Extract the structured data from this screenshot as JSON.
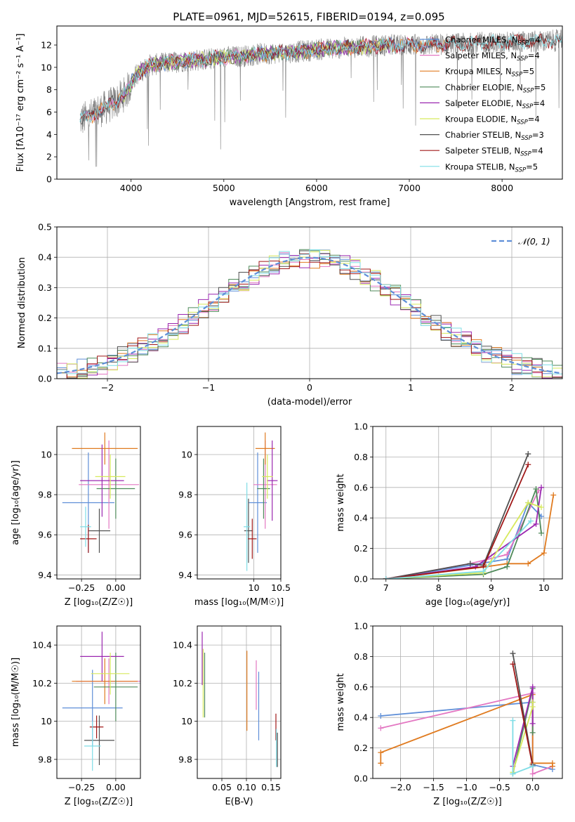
{
  "figure_title": "PLATE=0961, MJD=52615, FIBERID=0194, z=0.095",
  "colors": {
    "Chabrier MILES": "#5f8fd8",
    "Salpeter MILES": "#e377c2",
    "Kroupa MILES": "#e07b20",
    "Chabrier ELODIE": "#4f8a5a",
    "Salpeter ELODIE": "#9b27b0",
    "Kroupa ELODIE": "#d7e95c",
    "Chabrier STELIB": "#505050",
    "Salpeter STELIB": "#a01818",
    "Kroupa STELIB": "#7fdde6"
  },
  "chart_data": [
    {
      "id": "spectrum",
      "type": "line",
      "title": "PLATE=0961, MJD=52615, FIBERID=0194, z=0.095",
      "xlabel": "wavelength [Angstrom, rest frame]",
      "ylabel": "Flux [fλ10⁻¹⁷ erg cm⁻² s⁻¹ A⁻¹]",
      "xlim": [
        3200,
        8650
      ],
      "ylim": [
        0,
        13.7
      ],
      "xticks": [
        4000,
        5000,
        6000,
        7000,
        8000
      ],
      "yticks": [
        0,
        2,
        4,
        6,
        8,
        10,
        12
      ],
      "legend_position": "right",
      "continuum": {
        "x": [
          3450,
          3550,
          3650,
          3750,
          3850,
          3950,
          4050,
          4200,
          4400,
          4600,
          4800,
          5000,
          5200,
          5400,
          5600,
          5800,
          6000,
          6200,
          6400,
          6600,
          6800,
          7000,
          7200,
          7400,
          7600,
          7800,
          8000,
          8200,
          8400,
          8600
        ],
        "y": [
          5.3,
          5.6,
          6.1,
          6.5,
          7.0,
          7.8,
          9.3,
          10.2,
          10.4,
          10.6,
          10.7,
          10.9,
          11.0,
          11.2,
          11.3,
          11.4,
          11.6,
          11.7,
          11.8,
          11.9,
          12.0,
          12.0,
          12.0,
          12.1,
          12.1,
          12.2,
          12.2,
          12.3,
          12.3,
          12.4
        ]
      },
      "series": [
        {
          "name": "Chabrier MILES, N_SSP=4",
          "label_main": "Chabrier MILES, N",
          "label_sub": "SSP",
          "label_tail": "=4",
          "color": "#5f8fd8",
          "xmin": 3500,
          "xmax": 7400
        },
        {
          "name": "Salpeter MILES, N_SSP=4",
          "label_main": "Salpeter MILES, N",
          "label_sub": "SSP",
          "label_tail": "=4",
          "color": "#e377c2",
          "xmin": 3500,
          "xmax": 7400
        },
        {
          "name": "Kroupa MILES, N_SSP=5",
          "label_main": "Kroupa MILES, N",
          "label_sub": "SSP",
          "label_tail": "=5",
          "color": "#e07b20",
          "xmin": 3500,
          "xmax": 7400
        },
        {
          "name": "Chabrier ELODIE, N_SSP=5",
          "label_main": "Chabrier ELODIE, N",
          "label_sub": "SSP",
          "label_tail": "=5",
          "color": "#4f8a5a",
          "xmin": 3900,
          "xmax": 6800
        },
        {
          "name": "Salpeter ELODIE, N_SSP=4",
          "label_main": "Salpeter ELODIE, N",
          "label_sub": "SSP",
          "label_tail": "=4",
          "color": "#9b27b0",
          "xmin": 3900,
          "xmax": 6800
        },
        {
          "name": "Kroupa ELODIE, N_SSP=4",
          "label_main": "Kroupa ELODIE, N",
          "label_sub": "SSP",
          "label_tail": "=4",
          "color": "#d7e95c",
          "xmin": 3900,
          "xmax": 6800
        },
        {
          "name": "Chabrier STELIB, N_SSP=3",
          "label_main": "Chabrier STELIB, N",
          "label_sub": "SSP",
          "label_tail": "=3",
          "color": "#505050",
          "xmin": 3450,
          "xmax": 8650
        },
        {
          "name": "Salpeter STELIB, N_SSP=4",
          "label_main": "Salpeter STELIB, N",
          "label_sub": "SSP",
          "label_tail": "=4",
          "color": "#a01818",
          "xmin": 3450,
          "xmax": 8650
        },
        {
          "name": "Kroupa STELIB, N_SSP=5",
          "label_main": "Kroupa STELIB, N",
          "label_sub": "SSP",
          "label_tail": "=5",
          "color": "#7fdde6",
          "xmin": 3450,
          "xmax": 8650
        }
      ]
    },
    {
      "id": "residuals",
      "type": "bar",
      "xlabel": "(data-model)/error",
      "ylabel": "Normed distribution",
      "xlim": [
        -2.5,
        2.5
      ],
      "ylim": [
        0,
        0.5
      ],
      "xticks": [
        -2,
        -1,
        0,
        1,
        2
      ],
      "yticks": [
        0.0,
        0.1,
        0.2,
        0.3,
        0.4,
        0.5
      ],
      "grid": true,
      "legend": {
        "label": "𝒩(0, 1)",
        "position": "top-right"
      },
      "reference_curve": {
        "name": "N(0,1)",
        "color": "#5f8fd8",
        "style": "dashed"
      },
      "bin_width": 0.1,
      "histogram_base": [
        0.022,
        0.025,
        0.028,
        0.03,
        0.035,
        0.04,
        0.045,
        0.05,
        0.06,
        0.065,
        0.07,
        0.08,
        0.09,
        0.1,
        0.11,
        0.125,
        0.14,
        0.16,
        0.175,
        0.19,
        0.205,
        0.22,
        0.235,
        0.25,
        0.265,
        0.28,
        0.295,
        0.31,
        0.325,
        0.34,
        0.35,
        0.36,
        0.37,
        0.38,
        0.39,
        0.395,
        0.4,
        0.4,
        0.398,
        0.395,
        0.39,
        0.385,
        0.378,
        0.37,
        0.36,
        0.35,
        0.338,
        0.325,
        0.31,
        0.295,
        0.28,
        0.265,
        0.25,
        0.235,
        0.22,
        0.205,
        0.19,
        0.175,
        0.16,
        0.145,
        0.13,
        0.115,
        0.1,
        0.09,
        0.08,
        0.07,
        0.06,
        0.055,
        0.05,
        0.045,
        0.04,
        0.035,
        0.032,
        0.03,
        0.028,
        0.026,
        0.025,
        0.024,
        0.023,
        0.022,
        0.021,
        0.02,
        0.02,
        0.02,
        0.02,
        0.02,
        0.02,
        0.02,
        0.02,
        0.02,
        0.02,
        0.02,
        0.02,
        0.02,
        0.02,
        0.02,
        0.02,
        0.02,
        0.02,
        0.02
      ]
    },
    {
      "id": "age-vs-Z",
      "type": "scatter",
      "xlabel": "Z [log₁₀(Z/Z☉)]",
      "ylabel": "age  [log₁₀(age/yr)]",
      "xlim": [
        -0.43,
        0.18
      ],
      "ylim": [
        9.38,
        10.14
      ],
      "xticks": [
        -0.25,
        0.0
      ],
      "xticklabels": [
        "−0.25",
        "0.00"
      ],
      "yticks": [
        9.4,
        9.6,
        9.8,
        10.0
      ],
      "grid": true,
      "points": [
        {
          "series": "Chabrier MILES",
          "x": -0.2,
          "y": 9.76,
          "xerr": 0.19,
          "yerr": 0.25
        },
        {
          "series": "Salpeter MILES",
          "x": -0.05,
          "y": 9.85,
          "xerr": 0.22,
          "yerr": 0.22
        },
        {
          "series": "Kroupa MILES",
          "x": -0.08,
          "y": 10.03,
          "xerr": 0.24,
          "yerr": 0.08
        },
        {
          "series": "Chabrier ELODIE",
          "x": 0.0,
          "y": 9.83,
          "xerr": 0.14,
          "yerr": 0.15
        },
        {
          "series": "Salpeter ELODIE",
          "x": -0.1,
          "y": 9.87,
          "xerr": 0.16,
          "yerr": 0.18
        },
        {
          "series": "Kroupa ELODIE",
          "x": -0.04,
          "y": 9.89,
          "xerr": 0.11,
          "yerr": 0.11
        },
        {
          "series": "Chabrier STELIB",
          "x": -0.12,
          "y": 9.62,
          "xerr": 0.08,
          "yerr": 0.11
        },
        {
          "series": "Salpeter STELIB",
          "x": -0.2,
          "y": 9.58,
          "xerr": 0.06,
          "yerr": 0.07
        },
        {
          "series": "Kroupa STELIB",
          "x": -0.22,
          "y": 9.64,
          "xerr": 0.04,
          "yerr": 0.1
        }
      ]
    },
    {
      "id": "age-vs-mass",
      "type": "scatter",
      "xlabel": "mass [log₁₀(M/M☉)]",
      "ylabel": "",
      "xlim": [
        8.95,
        10.5
      ],
      "ylim": [
        9.38,
        10.14
      ],
      "xticks": [
        10.0,
        10.5
      ],
      "yticks": [
        9.4,
        9.6,
        9.8,
        10.0
      ],
      "grid": true,
      "points": [
        {
          "series": "Chabrier MILES",
          "x": 10.07,
          "y": 9.76,
          "xerr": 0.17,
          "yerr": 0.25
        },
        {
          "series": "Salpeter MILES",
          "x": 10.21,
          "y": 9.85,
          "xerr": 0.22,
          "yerr": 0.22
        },
        {
          "series": "Kroupa MILES",
          "x": 10.21,
          "y": 10.03,
          "xerr": 0.18,
          "yerr": 0.08
        },
        {
          "series": "Chabrier ELODIE",
          "x": 10.18,
          "y": 9.83,
          "xerr": 0.12,
          "yerr": 0.15
        },
        {
          "series": "Salpeter ELODIE",
          "x": 10.34,
          "y": 9.87,
          "xerr": 0.1,
          "yerr": 0.2
        },
        {
          "series": "Kroupa ELODIE",
          "x": 10.25,
          "y": 9.89,
          "xerr": 0.1,
          "yerr": 0.11
        },
        {
          "series": "Chabrier STELIB",
          "x": 9.9,
          "y": 9.62,
          "xerr": 0.08,
          "yerr": 0.16
        },
        {
          "series": "Salpeter STELIB",
          "x": 9.97,
          "y": 9.58,
          "xerr": 0.08,
          "yerr": 0.1
        },
        {
          "series": "Kroupa STELIB",
          "x": 9.87,
          "y": 9.64,
          "xerr": 0.06,
          "yerr": 0.22
        }
      ]
    },
    {
      "id": "mass-weight-vs-age",
      "type": "line",
      "xlabel": "age  [log₁₀(age/yr)]",
      "ylabel": "mass weight",
      "xlim": [
        6.75,
        10.35
      ],
      "ylim": [
        0,
        1.0
      ],
      "xticks": [
        7,
        8,
        9,
        10
      ],
      "yticks": [
        0.0,
        0.2,
        0.4,
        0.6,
        0.8,
        1.0
      ],
      "grid": true,
      "series": [
        {
          "name": "Chabrier MILES",
          "x": [
            7.0,
            8.6,
            9.3,
            9.7,
            9.95
          ],
          "y": [
            0.0,
            0.09,
            0.13,
            0.5,
            0.41
          ]
        },
        {
          "name": "Salpeter MILES",
          "x": [
            7.0,
            8.6,
            9.3,
            9.9
          ],
          "y": [
            0.0,
            0.1,
            0.16,
            0.58
          ]
        },
        {
          "name": "Kroupa MILES",
          "x": [
            7.0,
            8.9,
            9.3,
            9.7,
            10.0,
            10.18
          ],
          "y": [
            0.0,
            0.08,
            0.1,
            0.1,
            0.17,
            0.55
          ]
        },
        {
          "name": "Chabrier ELODIE",
          "x": [
            7.0,
            8.85,
            9.3,
            9.85,
            9.95
          ],
          "y": [
            0.0,
            0.03,
            0.08,
            0.59,
            0.3
          ]
        },
        {
          "name": "Salpeter ELODIE",
          "x": [
            7.0,
            8.7,
            9.85,
            9.95
          ],
          "y": [
            0.0,
            0.08,
            0.36,
            0.6
          ]
        },
        {
          "name": "Kroupa ELODIE",
          "x": [
            7.0,
            8.85,
            9.7,
            9.95
          ],
          "y": [
            0.0,
            0.04,
            0.5,
            0.47
          ]
        },
        {
          "name": "Chabrier STELIB",
          "x": [
            7.0,
            8.6,
            8.85,
            9.7
          ],
          "y": [
            0.0,
            0.1,
            0.09,
            0.82
          ]
        },
        {
          "name": "Salpeter STELIB",
          "x": [
            7.0,
            8.85,
            9.7
          ],
          "y": [
            0.0,
            0.08,
            0.75
          ]
        },
        {
          "name": "Kroupa STELIB",
          "x": [
            7.0,
            8.85,
            9.75
          ],
          "y": [
            0.0,
            0.05,
            0.38
          ]
        }
      ]
    },
    {
      "id": "mass-vs-Z",
      "type": "scatter",
      "xlabel": "Z [log₁₀(Z/Z☉)]",
      "ylabel": "mass [log₁₀(M/M☉)]",
      "xlim": [
        -0.43,
        0.18
      ],
      "ylim": [
        9.7,
        10.5
      ],
      "xticks": [
        -0.25,
        0.0
      ],
      "xticklabels": [
        "−0.25",
        "0.00"
      ],
      "yticks": [
        9.8,
        10.0,
        10.2,
        10.4
      ],
      "grid": true,
      "points": [
        {
          "series": "Chabrier MILES",
          "x": -0.17,
          "y": 10.07,
          "xerr": 0.22,
          "yerr": 0.2
        },
        {
          "series": "Salpeter MILES",
          "x": -0.05,
          "y": 10.21,
          "xerr": 0.24,
          "yerr": 0.12
        },
        {
          "series": "Kroupa MILES",
          "x": -0.08,
          "y": 10.21,
          "xerr": 0.24,
          "yerr": 0.12
        },
        {
          "series": "Chabrier ELODIE",
          "x": 0.0,
          "y": 10.18,
          "xerr": 0.16,
          "yerr": 0.18
        },
        {
          "series": "Salpeter ELODIE",
          "x": -0.1,
          "y": 10.34,
          "xerr": 0.16,
          "yerr": 0.13
        },
        {
          "series": "Kroupa ELODIE",
          "x": -0.04,
          "y": 10.25,
          "xerr": 0.14,
          "yerr": 0.11
        },
        {
          "series": "Chabrier STELIB",
          "x": -0.12,
          "y": 9.9,
          "xerr": 0.11,
          "yerr": 0.13
        },
        {
          "series": "Salpeter STELIB",
          "x": -0.14,
          "y": 9.97,
          "xerr": 0.05,
          "yerr": 0.06
        },
        {
          "series": "Kroupa STELIB",
          "x": -0.17,
          "y": 9.87,
          "xerr": 0.06,
          "yerr": 0.13
        }
      ]
    },
    {
      "id": "mass-vs-EBV",
      "type": "scatter",
      "xlabel": "E(B-V)",
      "ylabel": "",
      "xlim": [
        0.0,
        0.17
      ],
      "ylim": [
        9.7,
        10.5
      ],
      "xticks": [
        0.05,
        0.1,
        0.15
      ],
      "xticklabels": [
        "0.05",
        "0.10",
        "0.15"
      ],
      "yticks": [
        9.8,
        10.0,
        10.2,
        10.4
      ],
      "grid": true,
      "points": [
        {
          "series": "Chabrier MILES",
          "x": 0.125,
          "y": 10.08,
          "xerr": 0,
          "yerr": 0.18
        },
        {
          "series": "Salpeter MILES",
          "x": 0.12,
          "y": 10.19,
          "xerr": 0,
          "yerr": 0.13
        },
        {
          "series": "Kroupa MILES",
          "x": 0.101,
          "y": 10.16,
          "xerr": 0,
          "yerr": 0.21
        },
        {
          "series": "Chabrier ELODIE",
          "x": 0.015,
          "y": 10.19,
          "xerr": 0,
          "yerr": 0.17
        },
        {
          "series": "Salpeter ELODIE",
          "x": 0.01,
          "y": 10.33,
          "xerr": 0,
          "yerr": 0.14
        },
        {
          "series": "Kroupa ELODIE",
          "x": 0.012,
          "y": 10.2,
          "xerr": 0,
          "yerr": 0.18
        },
        {
          "series": "Chabrier STELIB",
          "x": 0.163,
          "y": 9.85,
          "xerr": 0,
          "yerr": 0.09
        },
        {
          "series": "Salpeter STELIB",
          "x": 0.16,
          "y": 9.97,
          "xerr": 0,
          "yerr": 0.07
        },
        {
          "series": "Kroupa STELIB",
          "x": 0.161,
          "y": 9.86,
          "xerr": 0,
          "yerr": 0.1
        }
      ]
    },
    {
      "id": "mass-weight-vs-Z",
      "type": "line",
      "xlabel": "Z [log₁₀(Z/Z☉)]",
      "ylabel": "mass weight",
      "xlim": [
        -2.42,
        0.45
      ],
      "ylim": [
        0,
        1.0
      ],
      "xticks": [
        -2.0,
        -1.5,
        -1.0,
        -0.5,
        0.0
      ],
      "xticklabels": [
        "−2.0",
        "−1.5",
        "−1.0",
        "−0.5",
        "0.0"
      ],
      "yticks": [
        0.0,
        0.2,
        0.4,
        0.6,
        0.8,
        1.0
      ],
      "grid": true,
      "series": [
        {
          "name": "Chabrier MILES",
          "x": [
            -2.3,
            0.0,
            0.0,
            0.3
          ],
          "y": [
            0.41,
            0.5,
            0.09,
            0.06
          ]
        },
        {
          "name": "Salpeter MILES",
          "x": [
            -2.3,
            0.0,
            0.0,
            0.3
          ],
          "y": [
            0.33,
            0.56,
            0.03,
            0.08
          ]
        },
        {
          "name": "Kroupa MILES",
          "x": [
            -2.3,
            -2.3,
            0.0,
            0.0,
            0.3,
            0.3
          ],
          "y": [
            0.1,
            0.17,
            0.55,
            0.1,
            0.1,
            0.08
          ]
        },
        {
          "name": "Chabrier ELODIE",
          "x": [
            -0.3,
            0.0,
            0.0
          ],
          "y": [
            0.03,
            0.59,
            0.3
          ]
        },
        {
          "name": "Salpeter ELODIE",
          "x": [
            -0.3,
            0.0,
            0.0
          ],
          "y": [
            0.08,
            0.6,
            0.36
          ]
        },
        {
          "name": "Kroupa ELODIE",
          "x": [
            -0.3,
            0.0,
            0.0
          ],
          "y": [
            0.04,
            0.47,
            0.5
          ]
        },
        {
          "name": "Chabrier STELIB",
          "x": [
            -0.3,
            0.0
          ],
          "y": [
            0.82,
            0.09
          ]
        },
        {
          "name": "Salpeter STELIB",
          "x": [
            -0.3,
            0.0
          ],
          "y": [
            0.75,
            0.08
          ]
        },
        {
          "name": "Kroupa STELIB",
          "x": [
            -0.3,
            -0.3,
            0.0
          ],
          "y": [
            0.38,
            0.03,
            0.08
          ]
        }
      ]
    }
  ]
}
